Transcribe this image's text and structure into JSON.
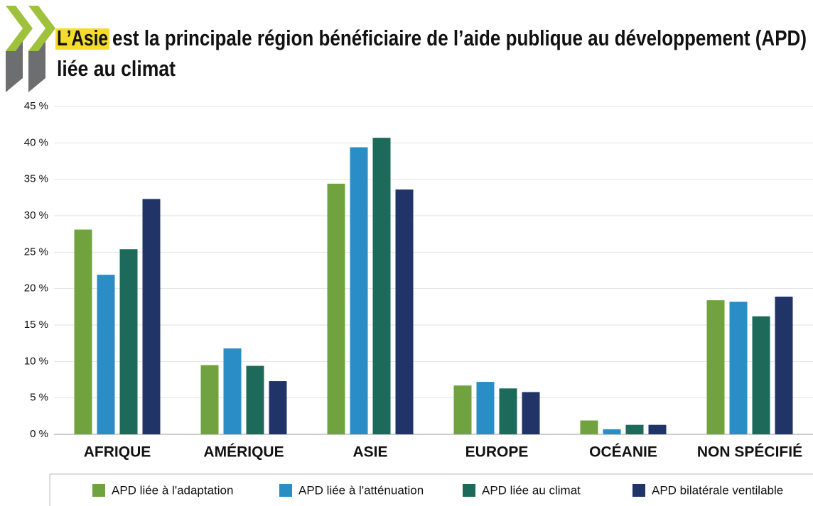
{
  "chart_data": {
    "type": "bar",
    "title": [
      "L’Asie",
      "est la principale région bénéficiaire de l’aide publique au développement (APD)",
      "liée au climat"
    ],
    "categories": [
      "AFRIQUE",
      "AMÉRIQUE",
      "ASIE",
      "EUROPE",
      "OCÉANIE",
      "NON SPÉCIFIÉ"
    ],
    "series": [
      {
        "name": "APD liée à l'adaptation",
        "color": "#70a33f",
        "values": [
          28.1,
          9.5,
          34.4,
          6.7,
          1.9,
          18.4
        ]
      },
      {
        "name": "APD liée à l'atténuation",
        "color": "#2b8dc6",
        "values": [
          21.9,
          11.8,
          39.4,
          7.2,
          0.7,
          18.2
        ]
      },
      {
        "name": "APD liée au climat",
        "color": "#1e6a5a",
        "values": [
          25.4,
          9.4,
          40.7,
          6.3,
          1.3,
          16.2
        ]
      },
      {
        "name": "APD bilatérale ventilable",
        "color": "#213467",
        "values": [
          32.3,
          7.3,
          33.6,
          5.8,
          1.3,
          18.9
        ]
      }
    ],
    "ylim": [
      0,
      45
    ],
    "yticks": [
      {
        "value": 0,
        "label": "0 %"
      },
      {
        "value": 5,
        "label": "5 %"
      },
      {
        "value": 10,
        "label": "10 %"
      },
      {
        "value": 15,
        "label": "15 %"
      },
      {
        "value": 20,
        "label": "20 %"
      },
      {
        "value": 25,
        "label": "25 %"
      },
      {
        "value": 30,
        "label": "30 %"
      },
      {
        "value": 35,
        "label": "35 %"
      },
      {
        "value": 40,
        "label": "40 %"
      },
      {
        "value": 45,
        "label": "45 %"
      }
    ],
    "grid": true
  }
}
